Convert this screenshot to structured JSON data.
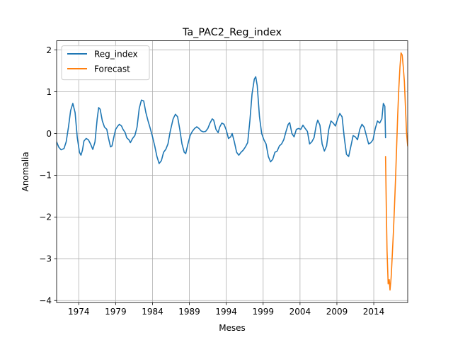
{
  "chart_data": {
    "type": "line",
    "title": "Ta_PAC2_Reg_index",
    "xlabel": "Meses",
    "ylabel": "Anomalia",
    "xlim": [
      1971.0,
      2018.6
    ],
    "ylim": [
      -4.05,
      2.22
    ],
    "grid": true,
    "legend": {
      "position": "upper-left"
    },
    "x_ticks": [
      1974,
      1979,
      1984,
      1989,
      1994,
      1999,
      2004,
      2009,
      2014
    ],
    "x_tick_labels": [
      "1974",
      "1979",
      "1984",
      "1989",
      "1994",
      "1999",
      "2004",
      "2009",
      "2014"
    ],
    "y_ticks": [
      -4,
      -3,
      -2,
      -1,
      0,
      1,
      2
    ],
    "y_tick_labels": [
      "−4",
      "−3",
      "−2",
      "−1",
      "0",
      "1",
      "2"
    ],
    "series": [
      {
        "name": "Reg_index",
        "color": "#1f77b4",
        "points": [
          [
            1971.0,
            -0.2
          ],
          [
            1971.3,
            -0.33
          ],
          [
            1971.6,
            -0.39
          ],
          [
            1972.0,
            -0.36
          ],
          [
            1972.3,
            -0.2
          ],
          [
            1972.6,
            0.15
          ],
          [
            1972.9,
            0.55
          ],
          [
            1973.2,
            0.72
          ],
          [
            1973.5,
            0.5
          ],
          [
            1973.8,
            -0.1
          ],
          [
            1974.1,
            -0.45
          ],
          [
            1974.3,
            -0.52
          ],
          [
            1974.5,
            -0.4
          ],
          [
            1974.7,
            -0.18
          ],
          [
            1975.0,
            -0.12
          ],
          [
            1975.3,
            -0.15
          ],
          [
            1975.6,
            -0.25
          ],
          [
            1975.9,
            -0.38
          ],
          [
            1976.2,
            -0.2
          ],
          [
            1976.5,
            0.35
          ],
          [
            1976.7,
            0.62
          ],
          [
            1976.9,
            0.58
          ],
          [
            1977.2,
            0.3
          ],
          [
            1977.5,
            0.15
          ],
          [
            1977.8,
            0.1
          ],
          [
            1978.0,
            -0.08
          ],
          [
            1978.3,
            -0.32
          ],
          [
            1978.5,
            -0.3
          ],
          [
            1978.8,
            -0.05
          ],
          [
            1979.0,
            0.1
          ],
          [
            1979.3,
            0.18
          ],
          [
            1979.5,
            0.22
          ],
          [
            1979.8,
            0.18
          ],
          [
            1980.0,
            0.1
          ],
          [
            1980.3,
            0.02
          ],
          [
            1980.5,
            -0.1
          ],
          [
            1980.8,
            -0.15
          ],
          [
            1981.0,
            -0.22
          ],
          [
            1981.3,
            -0.12
          ],
          [
            1981.6,
            -0.05
          ],
          [
            1981.9,
            0.15
          ],
          [
            1982.2,
            0.6
          ],
          [
            1982.5,
            0.8
          ],
          [
            1982.8,
            0.78
          ],
          [
            1983.1,
            0.5
          ],
          [
            1983.4,
            0.3
          ],
          [
            1983.7,
            0.12
          ],
          [
            1984.0,
            -0.08
          ],
          [
            1984.3,
            -0.3
          ],
          [
            1984.6,
            -0.55
          ],
          [
            1984.9,
            -0.72
          ],
          [
            1985.2,
            -0.65
          ],
          [
            1985.5,
            -0.45
          ],
          [
            1985.8,
            -0.38
          ],
          [
            1986.1,
            -0.25
          ],
          [
            1986.4,
            0.05
          ],
          [
            1986.8,
            0.35
          ],
          [
            1987.1,
            0.46
          ],
          [
            1987.4,
            0.4
          ],
          [
            1987.7,
            0.1
          ],
          [
            1988.0,
            -0.25
          ],
          [
            1988.3,
            -0.45
          ],
          [
            1988.5,
            -0.48
          ],
          [
            1988.8,
            -0.25
          ],
          [
            1989.1,
            -0.05
          ],
          [
            1989.4,
            0.05
          ],
          [
            1989.7,
            0.12
          ],
          [
            1990.0,
            0.16
          ],
          [
            1990.3,
            0.12
          ],
          [
            1990.6,
            0.06
          ],
          [
            1990.9,
            0.04
          ],
          [
            1991.2,
            0.05
          ],
          [
            1991.5,
            0.12
          ],
          [
            1991.8,
            0.25
          ],
          [
            1992.1,
            0.35
          ],
          [
            1992.3,
            0.32
          ],
          [
            1992.6,
            0.1
          ],
          [
            1992.9,
            0.02
          ],
          [
            1993.1,
            0.15
          ],
          [
            1993.4,
            0.25
          ],
          [
            1993.7,
            0.22
          ],
          [
            1994.0,
            0.08
          ],
          [
            1994.3,
            -0.12
          ],
          [
            1994.6,
            -0.08
          ],
          [
            1994.8,
            0.0
          ],
          [
            1995.1,
            -0.2
          ],
          [
            1995.4,
            -0.45
          ],
          [
            1995.7,
            -0.52
          ],
          [
            1996.0,
            -0.45
          ],
          [
            1996.3,
            -0.4
          ],
          [
            1996.6,
            -0.32
          ],
          [
            1996.9,
            -0.22
          ],
          [
            1997.2,
            0.3
          ],
          [
            1997.5,
            0.95
          ],
          [
            1997.8,
            1.3
          ],
          [
            1998.0,
            1.36
          ],
          [
            1998.2,
            1.15
          ],
          [
            1998.5,
            0.4
          ],
          [
            1998.8,
            0.0
          ],
          [
            1999.1,
            -0.15
          ],
          [
            1999.4,
            -0.25
          ],
          [
            1999.7,
            -0.55
          ],
          [
            2000.0,
            -0.68
          ],
          [
            2000.3,
            -0.62
          ],
          [
            2000.6,
            -0.45
          ],
          [
            2000.9,
            -0.42
          ],
          [
            2001.2,
            -0.3
          ],
          [
            2001.5,
            -0.25
          ],
          [
            2001.8,
            -0.15
          ],
          [
            2002.1,
            0.05
          ],
          [
            2002.4,
            0.22
          ],
          [
            2002.6,
            0.26
          ],
          [
            2002.9,
            0.0
          ],
          [
            2003.2,
            -0.08
          ],
          [
            2003.5,
            0.1
          ],
          [
            2003.8,
            0.12
          ],
          [
            2004.1,
            0.1
          ],
          [
            2004.4,
            0.2
          ],
          [
            2004.7,
            0.12
          ],
          [
            2005.0,
            0.05
          ],
          [
            2005.3,
            -0.25
          ],
          [
            2005.6,
            -0.2
          ],
          [
            2005.9,
            -0.1
          ],
          [
            2006.2,
            0.2
          ],
          [
            2006.4,
            0.32
          ],
          [
            2006.7,
            0.2
          ],
          [
            2007.0,
            -0.25
          ],
          [
            2007.3,
            -0.42
          ],
          [
            2007.6,
            -0.3
          ],
          [
            2007.9,
            0.1
          ],
          [
            2008.2,
            0.3
          ],
          [
            2008.5,
            0.25
          ],
          [
            2008.8,
            0.18
          ],
          [
            2009.1,
            0.35
          ],
          [
            2009.4,
            0.48
          ],
          [
            2009.7,
            0.4
          ],
          [
            2010.0,
            -0.1
          ],
          [
            2010.3,
            -0.5
          ],
          [
            2010.6,
            -0.55
          ],
          [
            2010.9,
            -0.3
          ],
          [
            2011.2,
            -0.05
          ],
          [
            2011.5,
            -0.08
          ],
          [
            2011.8,
            -0.15
          ],
          [
            2012.1,
            0.1
          ],
          [
            2012.4,
            0.22
          ],
          [
            2012.7,
            0.15
          ],
          [
            2013.0,
            -0.05
          ],
          [
            2013.3,
            -0.25
          ],
          [
            2013.6,
            -0.22
          ],
          [
            2013.9,
            -0.15
          ],
          [
            2014.2,
            0.12
          ],
          [
            2014.5,
            0.3
          ],
          [
            2014.8,
            0.25
          ],
          [
            2015.1,
            0.35
          ],
          [
            2015.3,
            0.72
          ],
          [
            2015.5,
            0.65
          ],
          [
            2015.6,
            -0.1
          ]
        ]
      },
      {
        "name": "Forecast",
        "color": "#ff7f0e",
        "points": [
          [
            2015.6,
            -0.55
          ],
          [
            2015.7,
            -1.8
          ],
          [
            2015.8,
            -2.8
          ],
          [
            2015.95,
            -3.6
          ],
          [
            2016.1,
            -3.5
          ],
          [
            2016.2,
            -3.75
          ],
          [
            2016.35,
            -3.45
          ],
          [
            2016.5,
            -2.95
          ],
          [
            2016.65,
            -2.4
          ],
          [
            2016.8,
            -1.8
          ],
          [
            2016.95,
            -1.1
          ],
          [
            2017.1,
            -0.3
          ],
          [
            2017.25,
            0.45
          ],
          [
            2017.4,
            1.1
          ],
          [
            2017.55,
            1.6
          ],
          [
            2017.7,
            1.93
          ],
          [
            2017.85,
            1.88
          ],
          [
            2018.0,
            1.6
          ],
          [
            2018.15,
            1.25
          ],
          [
            2018.3,
            0.6
          ],
          [
            2018.45,
            0.0
          ],
          [
            2018.6,
            -0.3
          ]
        ]
      }
    ]
  }
}
